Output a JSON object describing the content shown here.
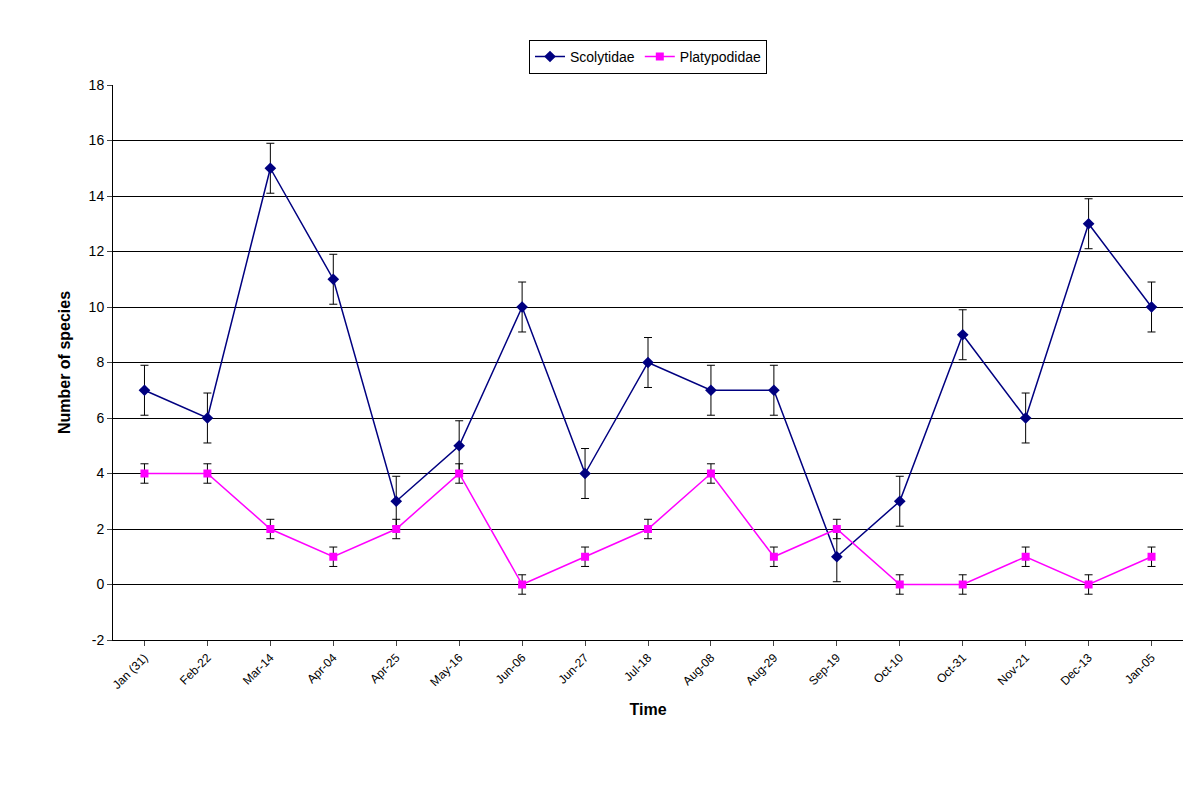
{
  "chart_data": {
    "type": "line",
    "x_label": "Time",
    "y_label": "Number of species",
    "categories": [
      "Jan (31)",
      "Feb-22",
      "Mar-14",
      "Apr-04",
      "Apr-25",
      "May-16",
      "Jun-06",
      "Jun-27",
      "Jul-18",
      "Aug-08",
      "Aug-29",
      "Sep-19",
      "Oct-10",
      "Oct-31",
      "Nov-21",
      "Dec-13",
      "Jan-05"
    ],
    "series": [
      {
        "name": "Scolytidae",
        "color": "#000080",
        "marker": "diamond",
        "line_style": "solid",
        "values": [
          7,
          6,
          15,
          11,
          3,
          5,
          10,
          4,
          8,
          7,
          7,
          1,
          3,
          9,
          6,
          13,
          10
        ],
        "error": 0.9
      },
      {
        "name": "Platypodidae",
        "color": "#ff00ff",
        "marker": "square",
        "line_style": "solid",
        "values": [
          4,
          4,
          2,
          1,
          2,
          4,
          0,
          1,
          2,
          4,
          1,
          2,
          0,
          0,
          1,
          0,
          1
        ],
        "error": 0.35
      }
    ],
    "ylim": [
      -2,
      18
    ],
    "yticks": [
      -2,
      0,
      2,
      4,
      6,
      8,
      10,
      12,
      14,
      16,
      18
    ],
    "grid": true,
    "legend": "top"
  }
}
